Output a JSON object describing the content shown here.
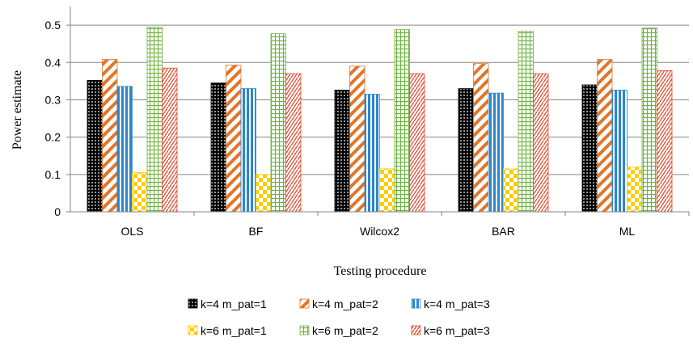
{
  "chart_data": {
    "type": "bar",
    "title": "",
    "xlabel": "Testing procedure",
    "ylabel": "Power estimate",
    "ylim": [
      0,
      0.55
    ],
    "yticks": [
      0,
      0.1,
      0.2,
      0.3,
      0.4,
      0.5
    ],
    "ytick_labels": [
      "0",
      "0.1",
      "0.2",
      "0.3",
      "0.4",
      "0.5"
    ],
    "grid": true,
    "legend_position": "bottom",
    "categories": [
      "OLS",
      "BF",
      "Wilcox2",
      "BAR",
      "ML"
    ],
    "series": [
      {
        "name": "k=4 m_pat=1",
        "values": [
          0.352,
          0.345,
          0.326,
          0.33,
          0.34
        ],
        "pattern": "dots",
        "color": "#000000"
      },
      {
        "name": "k=4 m_pat=2",
        "values": [
          0.408,
          0.393,
          0.39,
          0.397,
          0.408
        ],
        "pattern": "diag",
        "color": "#e0762a"
      },
      {
        "name": "k=4 m_pat=3",
        "values": [
          0.336,
          0.33,
          0.315,
          0.318,
          0.326
        ],
        "pattern": "vlines",
        "color": "#2e86c8"
      },
      {
        "name": "k=6 m_pat=1",
        "values": [
          0.105,
          0.1,
          0.115,
          0.115,
          0.12
        ],
        "pattern": "checker",
        "color": "#ffcc00"
      },
      {
        "name": "k=6 m_pat=2",
        "values": [
          0.495,
          0.477,
          0.488,
          0.484,
          0.492
        ],
        "pattern": "grid",
        "color": "#6cb33e"
      },
      {
        "name": "k=6 m_pat=3",
        "values": [
          0.385,
          0.37,
          0.37,
          0.37,
          0.378
        ],
        "pattern": "zigzag",
        "color": "#e34a2f"
      }
    ]
  }
}
